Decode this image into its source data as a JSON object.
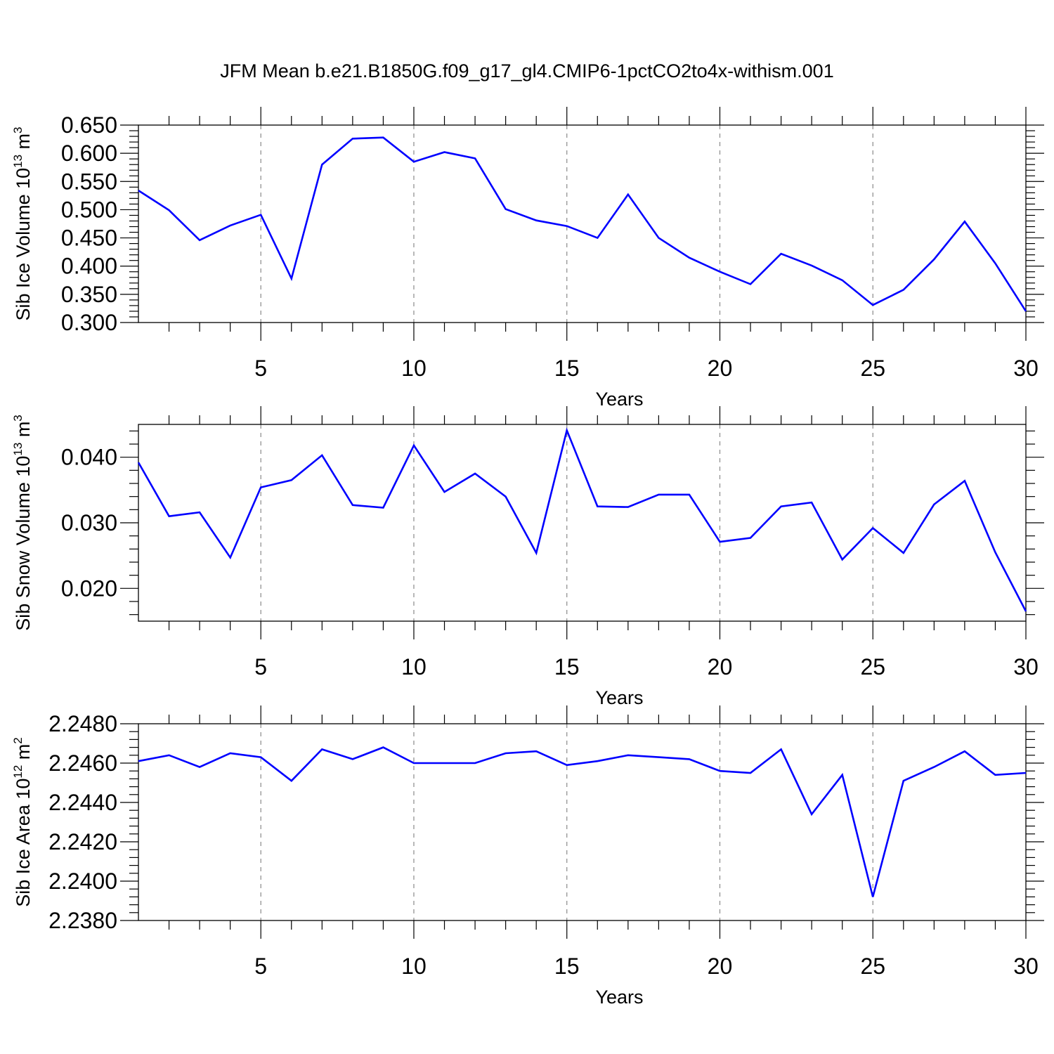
{
  "title": "JFM Mean b.e21.B1850G.f09_g17_gl4.CMIP6-1pctCO2to4x-withism.001",
  "colors": {
    "line": "#0000ff",
    "axis": "#000000",
    "grid": "#8a8a8a"
  },
  "chart_data": [
    {
      "type": "line",
      "xlabel": "Years",
      "ylabel": "Sib Ice Volume 10",
      "ylabel_exp": "13",
      "ylabel_unit": "m",
      "ylabel_unit_exp": "3",
      "xlim": [
        1,
        30
      ],
      "ylim": [
        0.3,
        0.65
      ],
      "xticks": [
        "5",
        "10",
        "15",
        "20",
        "25",
        "30"
      ],
      "yticks": [
        "0.300",
        "0.350",
        "0.400",
        "0.450",
        "0.500",
        "0.550",
        "0.600",
        "0.650"
      ],
      "grid": "vertical dashed",
      "series": [
        {
          "x": [
            1,
            2,
            3,
            4,
            5,
            6,
            7,
            8,
            9,
            10,
            11,
            12,
            13,
            14,
            15,
            16,
            17,
            18,
            19,
            20,
            21,
            22,
            23,
            24,
            25,
            26,
            27,
            28,
            29,
            30
          ],
          "values": [
            0.534,
            0.499,
            0.446,
            0.472,
            0.491,
            0.378,
            0.58,
            0.626,
            0.628,
            0.585,
            0.602,
            0.591,
            0.501,
            0.481,
            0.471,
            0.45,
            0.527,
            0.45,
            0.415,
            0.39,
            0.368,
            0.422,
            0.401,
            0.375,
            0.331,
            0.358,
            0.412,
            0.479,
            0.405,
            0.32
          ]
        }
      ]
    },
    {
      "type": "line",
      "xlabel": "Years",
      "ylabel": "Sib Snow Volume 10",
      "ylabel_exp": "13",
      "ylabel_unit": "m",
      "ylabel_unit_exp": "3",
      "xlim": [
        1,
        30
      ],
      "ylim": [
        0.015,
        0.045
      ],
      "xticks": [
        "5",
        "10",
        "15",
        "20",
        "25",
        "30"
      ],
      "yticks": [
        "0.020",
        "0.030",
        "0.040"
      ],
      "grid": "vertical dashed",
      "series": [
        {
          "x": [
            1,
            2,
            3,
            4,
            5,
            6,
            7,
            8,
            9,
            10,
            11,
            12,
            13,
            14,
            15,
            16,
            17,
            18,
            19,
            20,
            21,
            22,
            23,
            24,
            25,
            26,
            27,
            28,
            29,
            30
          ],
          "values": [
            0.0392,
            0.031,
            0.0316,
            0.0247,
            0.0354,
            0.0365,
            0.0403,
            0.0327,
            0.0323,
            0.0418,
            0.0347,
            0.0375,
            0.034,
            0.0254,
            0.0441,
            0.0325,
            0.0324,
            0.0343,
            0.0343,
            0.0271,
            0.0277,
            0.0325,
            0.0331,
            0.0244,
            0.0292,
            0.0254,
            0.0328,
            0.0364,
            0.0255,
            0.0165
          ]
        }
      ]
    },
    {
      "type": "line",
      "xlabel": "Years",
      "ylabel": "Sib Ice Area 10",
      "ylabel_exp": "12",
      "ylabel_unit": "m",
      "ylabel_unit_exp": "2",
      "xlim": [
        1,
        30
      ],
      "ylim": [
        2.238,
        2.248
      ],
      "xticks": [
        "5",
        "10",
        "15",
        "20",
        "25",
        "30"
      ],
      "yticks": [
        "2.2380",
        "2.2400",
        "2.2420",
        "2.2440",
        "2.2460",
        "2.2480"
      ],
      "grid": "vertical dashed",
      "series": [
        {
          "x": [
            1,
            2,
            3,
            4,
            5,
            6,
            7,
            8,
            9,
            10,
            11,
            12,
            13,
            14,
            15,
            16,
            17,
            18,
            19,
            20,
            21,
            22,
            23,
            24,
            25,
            26,
            27,
            28,
            29,
            30
          ],
          "values": [
            2.2461,
            2.2464,
            2.2458,
            2.2465,
            2.2463,
            2.2451,
            2.2467,
            2.2462,
            2.2468,
            2.246,
            2.246,
            2.246,
            2.2465,
            2.2466,
            2.2459,
            2.2461,
            2.2464,
            2.2463,
            2.2462,
            2.2456,
            2.2455,
            2.2467,
            2.2434,
            2.2454,
            2.2392,
            2.2451,
            2.2458,
            2.2466,
            2.2454,
            2.2455
          ]
        }
      ]
    }
  ]
}
